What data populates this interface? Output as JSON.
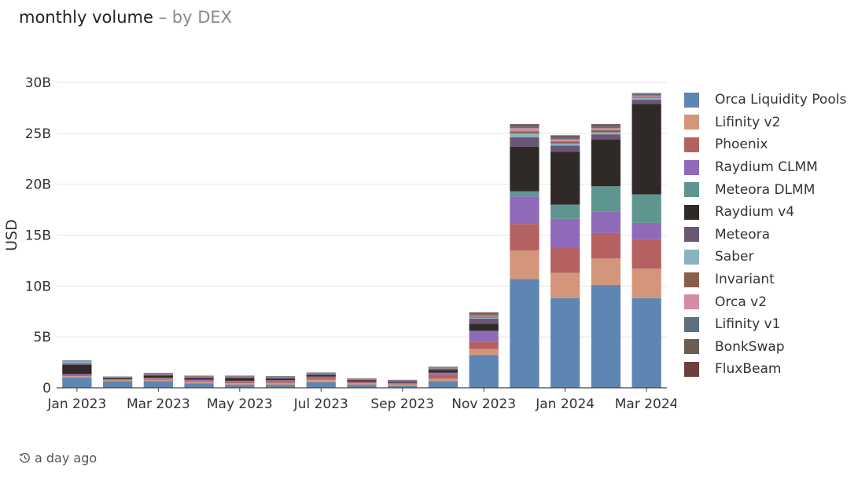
{
  "header": {
    "title": "monthly volume",
    "separator": "–",
    "subtitle": "by DEX"
  },
  "footer": {
    "timestamp": "a day ago",
    "icon": "history-clock-icon"
  },
  "chart_data": {
    "type": "bar",
    "stacked": true,
    "ylabel": "USD",
    "xlabel": "",
    "ylim": [
      0,
      30000000000
    ],
    "y_ticks": [
      0,
      5000000000,
      10000000000,
      15000000000,
      20000000000,
      25000000000,
      30000000000
    ],
    "y_tick_labels": [
      "0",
      "5B",
      "10B",
      "15B",
      "20B",
      "25B",
      "30B"
    ],
    "categories": [
      "Jan 2023",
      "Feb 2023",
      "Mar 2023",
      "Apr 2023",
      "May 2023",
      "Jun 2023",
      "Jul 2023",
      "Aug 2023",
      "Sep 2023",
      "Oct 2023",
      "Nov 2023",
      "Dec 2023",
      "Jan 2024",
      "Feb 2024",
      "Mar 2024"
    ],
    "x_tick_labels": [
      "Jan 2023",
      "",
      "Mar 2023",
      "",
      "May 2023",
      "",
      "Jul 2023",
      "",
      "Sep 2023",
      "",
      "Nov 2023",
      "",
      "Jan 2024",
      "",
      "Mar 2024"
    ],
    "legend_position": "right",
    "grid": true,
    "series": [
      {
        "name": "Orca Liquidity Pools",
        "color": "#5e86b2",
        "values": [
          1000000000.0,
          650000000.0,
          650000000.0,
          450000000.0,
          300000000.0,
          300000000.0,
          550000000.0,
          300000000.0,
          200000000.0,
          650000000.0,
          3200000000.0,
          10700000000.0,
          8800000000.0,
          10100000000.0,
          8800000000.0
        ]
      },
      {
        "name": "Lifinity v2",
        "color": "#d4967a",
        "values": [
          150000000.0,
          100000000.0,
          150000000.0,
          150000000.0,
          150000000.0,
          200000000.0,
          250000000.0,
          150000000.0,
          150000000.0,
          250000000.0,
          600000000.0,
          2800000000.0,
          2500000000.0,
          2600000000.0,
          2900000000.0
        ]
      },
      {
        "name": "Phoenix",
        "color": "#b56161",
        "values": [
          100000000.0,
          50000000.0,
          100000000.0,
          100000000.0,
          150000000.0,
          150000000.0,
          200000000.0,
          100000000.0,
          100000000.0,
          400000000.0,
          700000000.0,
          2600000000.0,
          2500000000.0,
          2500000000.0,
          2900000000.0
        ]
      },
      {
        "name": "Raydium CLMM",
        "color": "#8e6ab8",
        "values": [
          100000000.0,
          50000000.0,
          100000000.0,
          100000000.0,
          100000000.0,
          100000000.0,
          100000000.0,
          50000000.0,
          50000000.0,
          200000000.0,
          1100000000.0,
          2700000000.0,
          2800000000.0,
          2100000000.0,
          1600000000.0
        ]
      },
      {
        "name": "Meteora DLMM",
        "color": "#5f9590",
        "values": [
          0,
          0,
          0,
          0,
          0,
          0,
          0,
          0,
          0,
          0,
          0,
          500000000.0,
          1400000000.0,
          2500000000.0,
          2800000000.0
        ]
      },
      {
        "name": "Raydium v4",
        "color": "#2f2a27",
        "values": [
          900000000.0,
          100000000.0,
          200000000.0,
          150000000.0,
          250000000.0,
          150000000.0,
          150000000.0,
          150000000.0,
          100000000.0,
          250000000.0,
          700000000.0,
          4400000000.0,
          5200000000.0,
          4600000000.0,
          8900000000.0
        ]
      },
      {
        "name": "Meteora",
        "color": "#6b5677",
        "values": [
          150000000.0,
          50000000.0,
          100000000.0,
          100000000.0,
          100000000.0,
          100000000.0,
          100000000.0,
          50000000.0,
          50000000.0,
          100000000.0,
          500000000.0,
          900000000.0,
          600000000.0,
          500000000.0,
          400000000.0
        ]
      },
      {
        "name": "Saber",
        "color": "#8ab3c0",
        "values": [
          150000000.0,
          50000000.0,
          50000000.0,
          50000000.0,
          50000000.0,
          50000000.0,
          50000000.0,
          50000000.0,
          50000000.0,
          50000000.0,
          100000000.0,
          400000000.0,
          200000000.0,
          200000000.0,
          200000000.0
        ]
      },
      {
        "name": "Invariant",
        "color": "#8a5e4a",
        "values": [
          50000000.0,
          20000000.0,
          30000000.0,
          20000000.0,
          20000000.0,
          20000000.0,
          30000000.0,
          20000000.0,
          20000000.0,
          30000000.0,
          100000000.0,
          200000000.0,
          200000000.0,
          200000000.0,
          100000000.0
        ]
      },
      {
        "name": "Orca v2",
        "color": "#d48ba4",
        "values": [
          50000000.0,
          20000000.0,
          20000000.0,
          20000000.0,
          20000000.0,
          20000000.0,
          20000000.0,
          20000000.0,
          20000000.0,
          50000000.0,
          100000000.0,
          300000000.0,
          200000000.0,
          200000000.0,
          100000000.0
        ]
      },
      {
        "name": "Lifinity v1",
        "color": "#5d6f82",
        "values": [
          50000000.0,
          20000000.0,
          50000000.0,
          30000000.0,
          30000000.0,
          30000000.0,
          30000000.0,
          30000000.0,
          30000000.0,
          50000000.0,
          100000000.0,
          200000000.0,
          200000000.0,
          200000000.0,
          150000000.0
        ]
      },
      {
        "name": "BonkSwap",
        "color": "#6a5d52",
        "values": [
          0,
          0,
          20000000.0,
          20000000.0,
          20000000.0,
          20000000.0,
          20000000.0,
          10000000.0,
          10000000.0,
          30000000.0,
          100000000.0,
          100000000.0,
          100000000.0,
          100000000.0,
          50000000.0
        ]
      },
      {
        "name": "FluxBeam",
        "color": "#6e3e3e",
        "values": [
          0,
          0,
          0,
          0,
          0,
          0,
          0,
          0,
          0,
          20000000.0,
          100000000.0,
          100000000.0,
          100000000.0,
          100000000.0,
          50000000.0
        ]
      }
    ]
  }
}
